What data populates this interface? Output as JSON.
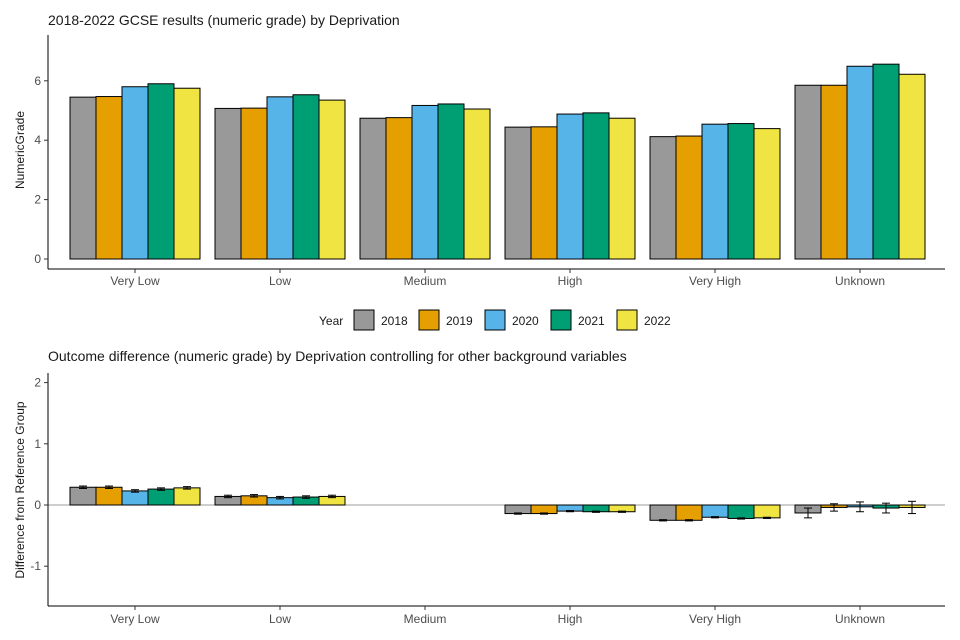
{
  "colors": {
    "2018": "#999999",
    "2019": "#E69F00",
    "2020": "#56B4E9",
    "2021": "#009E73",
    "2022": "#F0E442"
  },
  "legend": {
    "title": "Year",
    "items": [
      "2018",
      "2019",
      "2020",
      "2021",
      "2022"
    ],
    "placement": "bottom"
  },
  "chart_data": [
    {
      "type": "bar",
      "title": "2018-2022 GCSE results (numeric grade) by Deprivation",
      "xlabel": "",
      "ylabel": "NumericGrade",
      "ylim": [
        0,
        7.6
      ],
      "yticks": [
        "0",
        "2",
        "4",
        "6"
      ],
      "categories": [
        "Very Low",
        "Low",
        "Medium",
        "High",
        "Very High",
        "Unknown"
      ],
      "series": [
        {
          "name": "2018",
          "values": [
            5.45,
            5.07,
            4.74,
            4.44,
            4.12,
            5.85
          ]
        },
        {
          "name": "2019",
          "values": [
            5.47,
            5.08,
            4.76,
            4.45,
            4.14,
            5.85
          ]
        },
        {
          "name": "2020",
          "values": [
            5.8,
            5.46,
            5.17,
            4.88,
            4.54,
            6.49
          ]
        },
        {
          "name": "2021",
          "values": [
            5.9,
            5.53,
            5.22,
            4.92,
            4.56,
            6.56
          ]
        },
        {
          "name": "2022",
          "values": [
            5.75,
            5.35,
            5.05,
            4.74,
            4.39,
            6.22
          ]
        }
      ],
      "grid": false
    },
    {
      "type": "bar",
      "title": "Outcome difference (numeric grade) by Deprivation controlling for other background variables",
      "xlabel": "",
      "ylabel": "Difference from Reference Group",
      "ylim": [
        -1.65,
        2.1
      ],
      "yticks": [
        "-1",
        "0",
        "1",
        "2"
      ],
      "categories": [
        "Very Low",
        "Low",
        "Medium",
        "High",
        "Very High",
        "Unknown"
      ],
      "series": [
        {
          "name": "2018",
          "values": [
            0.29,
            0.14,
            0,
            -0.14,
            -0.25,
            -0.13
          ],
          "err": [
            0.02,
            0.02,
            0,
            0.01,
            0.01,
            0.08
          ]
        },
        {
          "name": "2019",
          "values": [
            0.29,
            0.15,
            0,
            -0.14,
            -0.25,
            -0.04
          ],
          "err": [
            0.02,
            0.02,
            0,
            0.01,
            0.01,
            0.06
          ]
        },
        {
          "name": "2020",
          "values": [
            0.23,
            0.12,
            0,
            -0.1,
            -0.2,
            -0.03
          ],
          "err": [
            0.02,
            0.02,
            0,
            0.01,
            0.01,
            0.08
          ]
        },
        {
          "name": "2021",
          "values": [
            0.26,
            0.13,
            0,
            -0.11,
            -0.22,
            -0.05
          ],
          "err": [
            0.02,
            0.02,
            0,
            0.01,
            0.01,
            0.08
          ]
        },
        {
          "name": "2022",
          "values": [
            0.28,
            0.14,
            0,
            -0.11,
            -0.21,
            -0.04
          ],
          "err": [
            0.02,
            0.02,
            0,
            0.01,
            0.01,
            0.1
          ]
        }
      ],
      "reference_line": 0,
      "grid": false
    }
  ]
}
